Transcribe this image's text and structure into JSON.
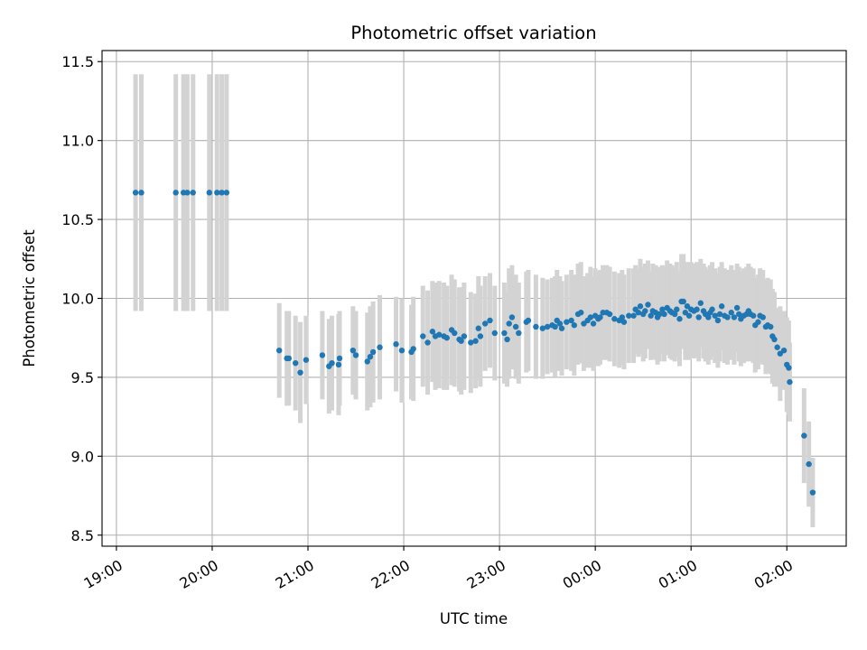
{
  "chart_data": {
    "type": "scatter",
    "title": "Photometric offset variation",
    "xlabel": "UTC time",
    "ylabel": "Photometric offset",
    "x_unit": "hours",
    "x_tick_values": [
      19,
      20,
      21,
      22,
      23,
      24,
      25,
      26
    ],
    "x_tick_labels": [
      "19:00",
      "20:00",
      "21:00",
      "22:00",
      "23:00",
      "00:00",
      "01:00",
      "02:00"
    ],
    "y_ticks": [
      8.5,
      9.0,
      9.5,
      10.0,
      10.5,
      11.0,
      11.5
    ],
    "y_tick_labels": [
      "8.5",
      "9.0",
      "9.5",
      "10.0",
      "10.5",
      "11.0",
      "11.5"
    ],
    "xlim": [
      18.85,
      26.62
    ],
    "ylim": [
      8.43,
      11.57
    ],
    "grid": true,
    "point_color": "#1f77b4",
    "errorbar_color": "#d3d3d3",
    "series": [
      {
        "points": [
          [
            19.2,
            10.67,
            0.75
          ],
          [
            19.26,
            10.67,
            0.75
          ],
          [
            19.62,
            10.67,
            0.75
          ],
          [
            19.7,
            10.67,
            0.75
          ],
          [
            19.74,
            10.67,
            0.75
          ],
          [
            19.8,
            10.67,
            0.75
          ],
          [
            19.97,
            10.67,
            0.75
          ],
          [
            20.05,
            10.67,
            0.75
          ],
          [
            20.1,
            10.67,
            0.75
          ],
          [
            20.15,
            10.67,
            0.75
          ],
          [
            20.7,
            9.67,
            0.3
          ],
          [
            20.78,
            9.62,
            0.3
          ],
          [
            20.8,
            9.62,
            0.3
          ],
          [
            20.87,
            9.59,
            0.3
          ],
          [
            20.92,
            9.53,
            0.32
          ],
          [
            20.98,
            9.61,
            0.28
          ],
          [
            21.15,
            9.64,
            0.28
          ],
          [
            21.22,
            9.57,
            0.3
          ],
          [
            21.25,
            9.59,
            0.3
          ],
          [
            21.32,
            9.58,
            0.32
          ],
          [
            21.33,
            9.62,
            0.3
          ],
          [
            21.47,
            9.67,
            0.28
          ],
          [
            21.5,
            9.64,
            0.28
          ],
          [
            21.62,
            9.6,
            0.31
          ],
          [
            21.65,
            9.63,
            0.32
          ],
          [
            21.68,
            9.66,
            0.32
          ],
          [
            21.75,
            9.69,
            0.33
          ],
          [
            21.92,
            9.71,
            0.3
          ],
          [
            21.98,
            9.67,
            0.33
          ],
          [
            22.08,
            9.66,
            0.3
          ],
          [
            22.1,
            9.68,
            0.33
          ],
          [
            22.2,
            9.76,
            0.32
          ],
          [
            22.25,
            9.72,
            0.33
          ],
          [
            22.3,
            9.79,
            0.32
          ],
          [
            22.33,
            9.76,
            0.34
          ],
          [
            22.37,
            9.77,
            0.34
          ],
          [
            22.42,
            9.76,
            0.34
          ],
          [
            22.45,
            9.75,
            0.33
          ],
          [
            22.5,
            9.8,
            0.35
          ],
          [
            22.53,
            9.78,
            0.34
          ],
          [
            22.58,
            9.74,
            0.33
          ],
          [
            22.6,
            9.73,
            0.34
          ],
          [
            22.63,
            9.76,
            0.34
          ],
          [
            22.7,
            9.72,
            0.32
          ],
          [
            22.75,
            9.73,
            0.3
          ],
          [
            22.78,
            9.81,
            0.33
          ],
          [
            22.8,
            9.76,
            0.32
          ],
          [
            22.85,
            9.84,
            0.3
          ],
          [
            22.9,
            9.86,
            0.3
          ],
          [
            22.95,
            9.78,
            0.3
          ],
          [
            23.05,
            9.78,
            0.32
          ],
          [
            23.08,
            9.74,
            0.3
          ],
          [
            23.1,
            9.84,
            0.35
          ],
          [
            23.13,
            9.88,
            0.33
          ],
          [
            23.17,
            9.82,
            0.33
          ],
          [
            23.2,
            9.78,
            0.32
          ],
          [
            23.28,
            9.85,
            0.32
          ],
          [
            23.3,
            9.86,
            0.32
          ],
          [
            23.38,
            9.82,
            0.33
          ],
          [
            23.45,
            9.81,
            0.32
          ],
          [
            23.5,
            9.82,
            0.3
          ],
          [
            23.55,
            9.83,
            0.3
          ],
          [
            23.58,
            9.82,
            0.32
          ],
          [
            23.6,
            9.86,
            0.32
          ],
          [
            23.63,
            9.84,
            0.3
          ],
          [
            23.65,
            9.81,
            0.3
          ],
          [
            23.7,
            9.85,
            0.3
          ],
          [
            23.75,
            9.86,
            0.32
          ],
          [
            23.78,
            9.83,
            0.32
          ],
          [
            23.82,
            9.9,
            0.32
          ],
          [
            23.85,
            9.91,
            0.32
          ],
          [
            23.88,
            9.84,
            0.3
          ],
          [
            23.92,
            9.86,
            0.3
          ],
          [
            23.95,
            9.88,
            0.32
          ],
          [
            23.98,
            9.84,
            0.3
          ],
          [
            24.0,
            9.89,
            0.3
          ],
          [
            24.03,
            9.87,
            0.3
          ],
          [
            24.05,
            9.88,
            0.3
          ],
          [
            24.08,
            9.91,
            0.3
          ],
          [
            24.12,
            9.91,
            0.3
          ],
          [
            24.15,
            9.9,
            0.3
          ],
          [
            24.2,
            9.87,
            0.3
          ],
          [
            24.25,
            9.86,
            0.3
          ],
          [
            24.28,
            9.88,
            0.3
          ],
          [
            24.3,
            9.85,
            0.3
          ],
          [
            24.35,
            9.89,
            0.3
          ],
          [
            24.4,
            9.89,
            0.3
          ],
          [
            24.42,
            9.93,
            0.28
          ],
          [
            24.45,
            9.91,
            0.28
          ],
          [
            24.47,
            9.95,
            0.3
          ],
          [
            24.5,
            9.9,
            0.3
          ],
          [
            24.52,
            9.92,
            0.3
          ],
          [
            24.55,
            9.96,
            0.28
          ],
          [
            24.58,
            9.89,
            0.28
          ],
          [
            24.6,
            9.92,
            0.3
          ],
          [
            24.63,
            9.91,
            0.3
          ],
          [
            24.65,
            9.88,
            0.3
          ],
          [
            24.67,
            9.9,
            0.3
          ],
          [
            24.7,
            9.93,
            0.28
          ],
          [
            24.72,
            9.9,
            0.3
          ],
          [
            24.75,
            9.94,
            0.3
          ],
          [
            24.78,
            9.92,
            0.3
          ],
          [
            24.8,
            9.91,
            0.3
          ],
          [
            24.83,
            9.9,
            0.3
          ],
          [
            24.85,
            9.93,
            0.3
          ],
          [
            24.88,
            9.87,
            0.3
          ],
          [
            24.9,
            9.98,
            0.3
          ],
          [
            24.92,
            9.98,
            0.3
          ],
          [
            24.94,
            9.91,
            0.3
          ],
          [
            24.96,
            9.95,
            0.28
          ],
          [
            24.98,
            9.89,
            0.28
          ],
          [
            25.0,
            9.93,
            0.3
          ],
          [
            25.03,
            9.92,
            0.3
          ],
          [
            25.06,
            9.93,
            0.3
          ],
          [
            25.08,
            9.88,
            0.28
          ],
          [
            25.1,
            9.97,
            0.28
          ],
          [
            25.13,
            9.92,
            0.3
          ],
          [
            25.15,
            9.9,
            0.3
          ],
          [
            25.18,
            9.88,
            0.3
          ],
          [
            25.2,
            9.91,
            0.3
          ],
          [
            25.22,
            9.93,
            0.3
          ],
          [
            25.25,
            9.89,
            0.3
          ],
          [
            25.28,
            9.86,
            0.3
          ],
          [
            25.3,
            9.9,
            0.3
          ],
          [
            25.32,
            9.95,
            0.28
          ],
          [
            25.35,
            9.89,
            0.3
          ],
          [
            25.38,
            9.88,
            0.3
          ],
          [
            25.42,
            9.91,
            0.3
          ],
          [
            25.45,
            9.88,
            0.3
          ],
          [
            25.48,
            9.94,
            0.28
          ],
          [
            25.5,
            9.9,
            0.3
          ],
          [
            25.52,
            9.87,
            0.3
          ],
          [
            25.55,
            9.89,
            0.3
          ],
          [
            25.58,
            9.9,
            0.3
          ],
          [
            25.6,
            9.92,
            0.3
          ],
          [
            25.62,
            9.9,
            0.3
          ],
          [
            25.65,
            9.89,
            0.3
          ],
          [
            25.67,
            9.83,
            0.3
          ],
          [
            25.7,
            9.85,
            0.3
          ],
          [
            25.72,
            9.89,
            0.3
          ],
          [
            25.75,
            9.88,
            0.3
          ],
          [
            25.78,
            9.82,
            0.3
          ],
          [
            25.8,
            9.83,
            0.3
          ],
          [
            25.83,
            9.82,
            0.3
          ],
          [
            25.85,
            9.76,
            0.3
          ],
          [
            25.87,
            9.74,
            0.3
          ],
          [
            25.9,
            9.69,
            0.25
          ],
          [
            25.93,
            9.65,
            0.3
          ],
          [
            25.97,
            9.67,
            0.25
          ],
          [
            26.0,
            9.58,
            0.3
          ],
          [
            26.02,
            9.56,
            0.3
          ],
          [
            26.03,
            9.47,
            0.25
          ],
          [
            26.18,
            9.13,
            0.3
          ],
          [
            26.23,
            8.95,
            0.27
          ],
          [
            26.27,
            8.77,
            0.22
          ]
        ]
      }
    ]
  }
}
